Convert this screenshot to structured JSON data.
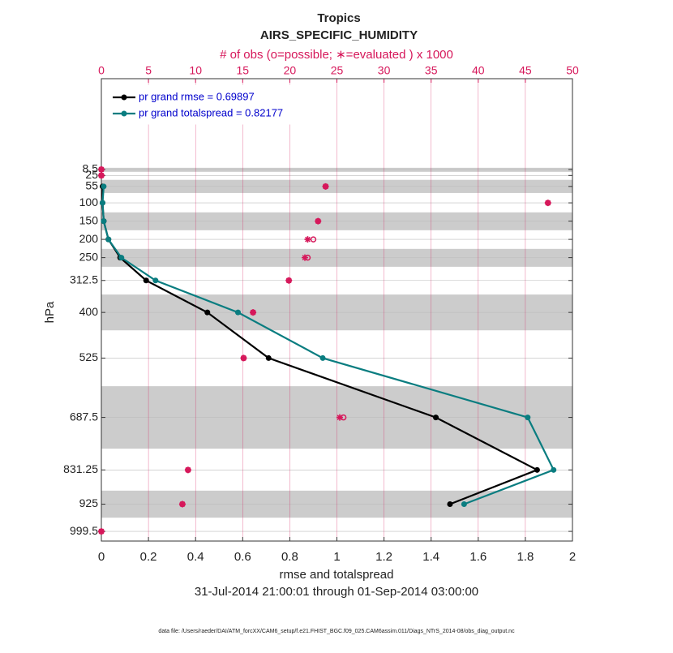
{
  "chart_data": {
    "type": "line",
    "title": "Tropics",
    "subtitle": "AIRS_SPECIFIC_HUMIDITY",
    "x2label": "# of obs (o=possible; ∗=evaluated ) x 1000",
    "xlabel": "rmse and totalspread",
    "ylabel": "hPa",
    "time_range": "31-Jul-2014 21:00:01 through 01-Sep-2014 03:00:00",
    "footer": "data file: /Users/raeder/DAI/ATM_forcXX/CAM6_setup/f.e21.FHIST_BGC.f09_025.CAM6assim.011/Diags_NTrS_2014-08/obs_diag_output.nc",
    "y": [
      8.5,
      25,
      55,
      100,
      150,
      200,
      250,
      312.5,
      400,
      525,
      687.5,
      831.25,
      925,
      999.5
    ],
    "ylim": [
      -240,
      1026
    ],
    "y_reversed": true,
    "yticks": [
      8.5,
      25,
      55,
      100,
      150,
      200,
      250,
      312.5,
      400,
      525,
      687.5,
      831.25,
      925,
      999.5
    ],
    "xlim": [
      0,
      2
    ],
    "xticks": [
      0,
      0.2,
      0.4,
      0.6,
      0.8,
      1,
      1.2,
      1.4,
      1.6,
      1.8,
      2
    ],
    "x2lim": [
      0,
      50
    ],
    "x2ticks": [
      0,
      5,
      10,
      15,
      20,
      25,
      30,
      35,
      40,
      45,
      50
    ],
    "x2color": "#d6175a",
    "grid": true,
    "legend": "upper left",
    "shaded_layers": [
      [
        4,
        15
      ],
      [
        37,
        73
      ],
      [
        126,
        175
      ],
      [
        226,
        275
      ],
      [
        351,
        449
      ],
      [
        602,
        773
      ],
      [
        888,
        962
      ]
    ],
    "series": [
      {
        "name": "pr grand rmse = 0.69897",
        "color": "#000000",
        "values": [
          null,
          null,
          0.005,
          0.005,
          0.01,
          0.03,
          0.08,
          0.19,
          0.45,
          0.71,
          1.42,
          1.85,
          1.48,
          null
        ]
      },
      {
        "name": "pr grand totalspread = 0.82177",
        "color": "#0a7d80",
        "values": [
          null,
          null,
          0.01,
          0.005,
          0.01,
          0.03,
          0.085,
          0.23,
          0.58,
          0.94,
          1.81,
          1.92,
          1.54,
          null
        ]
      }
    ],
    "obs_possible": [
      0,
      0,
      23.8,
      47.4,
      23,
      22.5,
      21.9,
      19.9,
      16.1,
      15.1,
      25.7,
      9.2,
      8.6,
      0
    ],
    "obs_evaluated": [
      0,
      0,
      23.8,
      47.4,
      23,
      21.9,
      21.6,
      19.9,
      16.1,
      15.1,
      25.3,
      9.2,
      8.6,
      0
    ]
  }
}
